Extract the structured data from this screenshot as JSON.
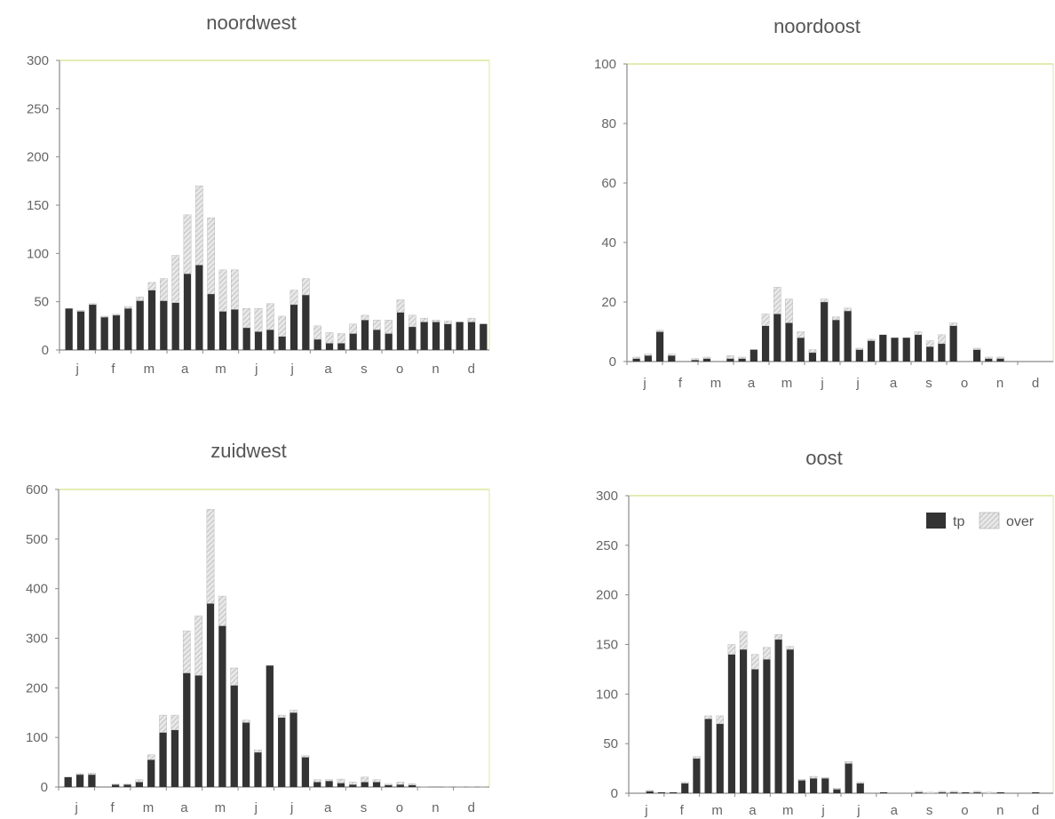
{
  "chart_data": [
    {
      "type": "bar",
      "title": "noordwest",
      "ylim": [
        0,
        300
      ],
      "yticks": [
        0,
        50,
        100,
        150,
        200,
        250,
        300
      ],
      "month_labels": [
        "j",
        "f",
        "m",
        "a",
        "m",
        "j",
        "j",
        "a",
        "s",
        "o",
        "n",
        "d"
      ],
      "stacked": true,
      "series": [
        {
          "name": "tp",
          "color": "#333333",
          "values": [
            43,
            40,
            47,
            34,
            36,
            43,
            51,
            62,
            51,
            49,
            79,
            88,
            58,
            40,
            42,
            23,
            19,
            21,
            14,
            47,
            57,
            11,
            7,
            7,
            17,
            31,
            21,
            17,
            39,
            24,
            29,
            29,
            27,
            29,
            29,
            27
          ]
        },
        {
          "name": "over",
          "color": "#dcdcdc",
          "values": [
            0,
            1,
            1,
            1,
            1,
            2,
            4,
            8,
            23,
            49,
            61,
            82,
            79,
            43,
            41,
            20,
            24,
            27,
            21,
            15,
            17,
            14,
            11,
            10,
            10,
            5,
            10,
            14,
            13,
            12,
            4,
            2,
            3,
            0,
            4,
            0
          ]
        }
      ]
    },
    {
      "type": "bar",
      "title": "noordoost",
      "ylim": [
        0,
        100
      ],
      "yticks": [
        0,
        20,
        40,
        60,
        80,
        100
      ],
      "month_labels": [
        "j",
        "f",
        "m",
        "a",
        "m",
        "j",
        "j",
        "a",
        "s",
        "o",
        "n",
        "d"
      ],
      "stacked": true,
      "series": [
        {
          "name": "tp",
          "color": "#333333",
          "values": [
            1,
            2,
            10,
            2,
            0,
            0.5,
            1,
            0,
            1,
            1,
            4,
            12,
            16,
            13,
            8,
            3,
            20,
            14,
            17,
            4,
            7,
            9,
            8,
            8,
            9,
            5,
            6,
            12,
            0,
            4,
            1,
            1,
            0,
            0,
            0,
            0
          ]
        },
        {
          "name": "over",
          "color": "#dcdcdc",
          "values": [
            0.5,
            0.5,
            0.5,
            0.5,
            0,
            0.5,
            0.5,
            0,
            1,
            0.5,
            0,
            4,
            9,
            8,
            2,
            1,
            1,
            1,
            1,
            0.5,
            0.5,
            0,
            0,
            0,
            1,
            2,
            3,
            1,
            0,
            0.5,
            0.5,
            0.5,
            0,
            0,
            0,
            0
          ]
        }
      ]
    },
    {
      "type": "bar",
      "title": "zuidwest",
      "ylim": [
        0,
        600
      ],
      "yticks": [
        0,
        100,
        200,
        300,
        400,
        500,
        600
      ],
      "month_labels": [
        "j",
        "f",
        "m",
        "a",
        "m",
        "j",
        "j",
        "a",
        "s",
        "o",
        "n",
        "d"
      ],
      "stacked": true,
      "series": [
        {
          "name": "tp",
          "color": "#333333",
          "values": [
            20,
            25,
            25,
            0,
            5,
            5,
            10,
            55,
            110,
            115,
            230,
            225,
            370,
            325,
            205,
            130,
            70,
            245,
            140,
            150,
            60,
            10,
            12,
            8,
            5,
            10,
            10,
            4,
            5,
            4,
            0,
            0,
            0,
            0,
            0,
            0
          ]
        },
        {
          "name": "over",
          "color": "#dcdcdc",
          "values": [
            0,
            2,
            3,
            0,
            1,
            1,
            5,
            10,
            35,
            30,
            85,
            120,
            190,
            60,
            35,
            5,
            5,
            0,
            5,
            5,
            3,
            5,
            3,
            8,
            5,
            10,
            5,
            2,
            5,
            3,
            1,
            0,
            1,
            1,
            1,
            1
          ]
        }
      ]
    },
    {
      "type": "bar",
      "title": "oost",
      "ylim": [
        0,
        300
      ],
      "yticks": [
        0,
        50,
        100,
        150,
        200,
        250,
        300
      ],
      "month_labels": [
        "j",
        "f",
        "m",
        "a",
        "m",
        "j",
        "j",
        "a",
        "s",
        "o",
        "n",
        "d"
      ],
      "stacked": true,
      "legend_position": "top-right",
      "series": [
        {
          "name": "tp",
          "color": "#333333",
          "values": [
            0,
            2,
            1,
            1,
            10,
            35,
            75,
            70,
            140,
            145,
            125,
            135,
            155,
            145,
            13,
            15,
            15,
            4,
            30,
            10,
            0,
            1,
            0,
            0,
            1,
            0,
            1,
            1,
            1,
            1,
            0,
            1,
            0,
            0,
            1,
            0
          ]
        },
        {
          "name": "over",
          "color": "#dcdcdc",
          "values": [
            0,
            1,
            0,
            0,
            1,
            2,
            3,
            8,
            10,
            18,
            15,
            12,
            5,
            3,
            1,
            2,
            1,
            1,
            2,
            1,
            0,
            0,
            0,
            0,
            1,
            1,
            1,
            1,
            0,
            1,
            1,
            0,
            0,
            0,
            0,
            0
          ]
        }
      ]
    }
  ],
  "legend": {
    "items": [
      {
        "label": "tp",
        "color": "#333333"
      },
      {
        "label": "over",
        "color": "#dcdcdc"
      }
    ]
  }
}
